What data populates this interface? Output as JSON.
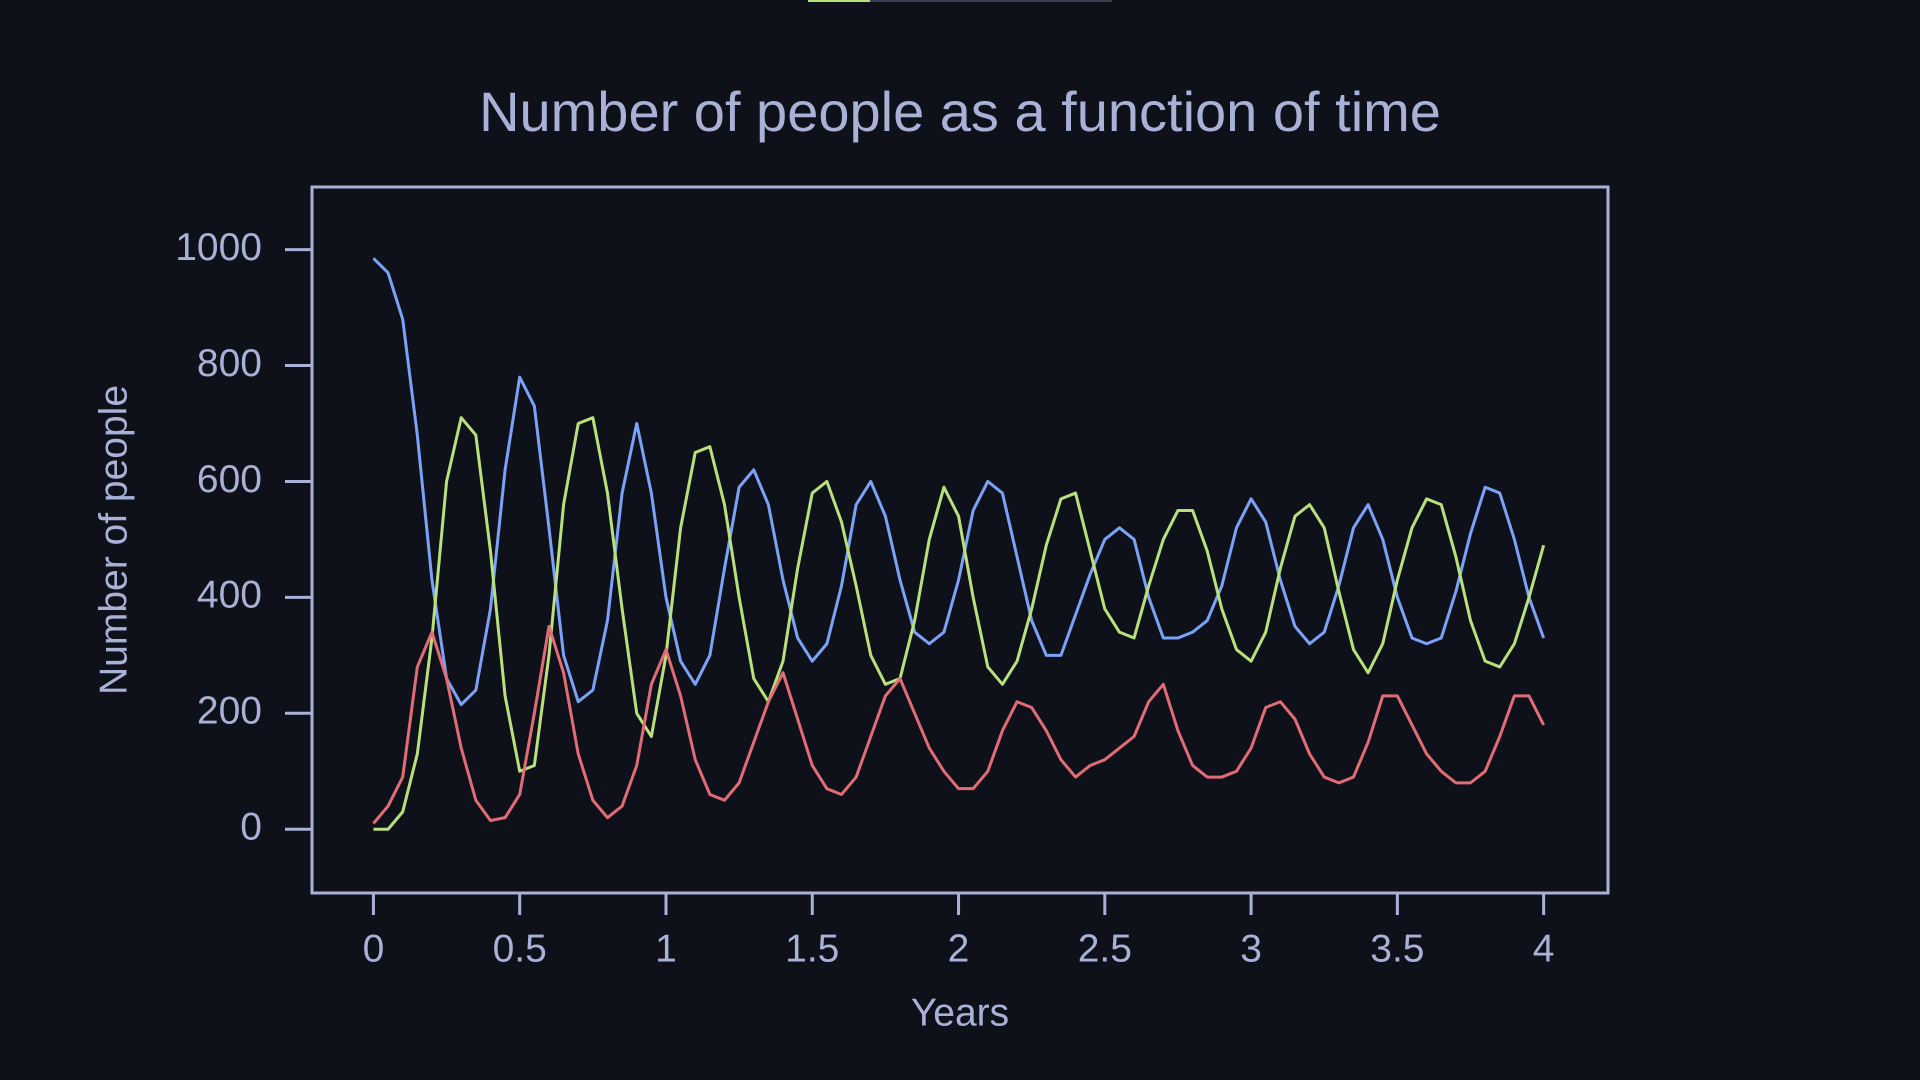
{
  "chart_data": {
    "type": "line",
    "title": "Number of people as a function of time",
    "xlabel": "Years",
    "ylabel": "Number of people",
    "x": [
      0,
      0.05,
      0.1,
      0.15,
      0.2,
      0.25,
      0.3,
      0.35,
      0.4,
      0.45,
      0.5,
      0.55,
      0.6,
      0.65,
      0.7,
      0.75,
      0.8,
      0.85,
      0.9,
      0.95,
      1,
      1.05,
      1.1,
      1.15,
      1.2,
      1.25,
      1.3,
      1.35,
      1.4,
      1.45,
      1.5,
      1.55,
      1.6,
      1.65,
      1.7,
      1.75,
      1.8,
      1.85,
      1.9,
      1.95,
      2,
      2.05,
      2.1,
      2.15,
      2.2,
      2.25,
      2.3,
      2.35,
      2.4,
      2.45,
      2.5,
      2.55,
      2.6,
      2.65,
      2.7,
      2.75,
      2.8,
      2.85,
      2.9,
      2.95,
      3,
      3.05,
      3.1,
      3.15,
      3.2,
      3.25,
      3.3,
      3.35,
      3.4,
      3.45,
      3.5,
      3.55,
      3.6,
      3.65,
      3.7,
      3.75,
      3.8,
      3.85,
      3.9,
      3.95,
      4
    ],
    "series": [
      {
        "color": "#7aa2f7",
        "values": [
          985,
          960,
          880,
          680,
          430,
          260,
          215,
          240,
          380,
          620,
          780,
          730,
          520,
          300,
          220,
          240,
          360,
          580,
          700,
          580,
          400,
          290,
          250,
          300,
          450,
          590,
          620,
          560,
          430,
          330,
          290,
          320,
          420,
          560,
          600,
          540,
          430,
          340,
          320,
          340,
          430,
          550,
          600,
          580,
          470,
          360,
          300,
          300,
          370,
          440,
          500,
          520,
          500,
          400,
          330,
          330,
          340,
          360,
          420,
          520,
          570,
          530,
          430,
          350,
          320,
          340,
          420,
          520,
          560,
          500,
          400,
          330,
          320,
          330,
          410,
          510,
          590,
          580,
          500,
          400,
          330
        ]
      },
      {
        "color": "#b9e07a",
        "values": [
          0,
          0,
          30,
          130,
          330,
          600,
          710,
          680,
          480,
          230,
          100,
          110,
          300,
          560,
          700,
          710,
          580,
          380,
          200,
          160,
          300,
          520,
          650,
          660,
          560,
          400,
          260,
          220,
          290,
          450,
          580,
          600,
          530,
          420,
          300,
          250,
          260,
          360,
          500,
          590,
          540,
          400,
          280,
          250,
          290,
          380,
          490,
          570,
          580,
          480,
          380,
          340,
          330,
          420,
          500,
          550,
          550,
          480,
          380,
          310,
          290,
          340,
          450,
          540,
          560,
          520,
          410,
          310,
          270,
          320,
          430,
          520,
          570,
          560,
          470,
          360,
          290,
          280,
          320,
          400,
          490
        ]
      },
      {
        "color": "#e06c75",
        "values": [
          10,
          40,
          90,
          280,
          340,
          260,
          140,
          50,
          15,
          20,
          60,
          200,
          350,
          270,
          130,
          50,
          20,
          40,
          110,
          250,
          310,
          230,
          120,
          60,
          50,
          80,
          150,
          220,
          270,
          190,
          110,
          70,
          60,
          90,
          160,
          230,
          260,
          200,
          140,
          100,
          70,
          70,
          100,
          170,
          220,
          210,
          170,
          120,
          90,
          110,
          120,
          140,
          160,
          220,
          250,
          170,
          110,
          90,
          90,
          100,
          140,
          210,
          220,
          190,
          130,
          90,
          80,
          90,
          150,
          230,
          230,
          180,
          130,
          100,
          80,
          80,
          100,
          160,
          230,
          230,
          180
        ]
      }
    ],
    "xlim": [
      -0.21,
      4.22
    ],
    "ylim": [
      -110,
      1108
    ],
    "xticks": [
      0,
      0.5,
      1,
      1.5,
      2,
      2.5,
      3,
      3.5,
      4
    ],
    "yticks": [
      0,
      200,
      400,
      600,
      800,
      1000
    ]
  }
}
